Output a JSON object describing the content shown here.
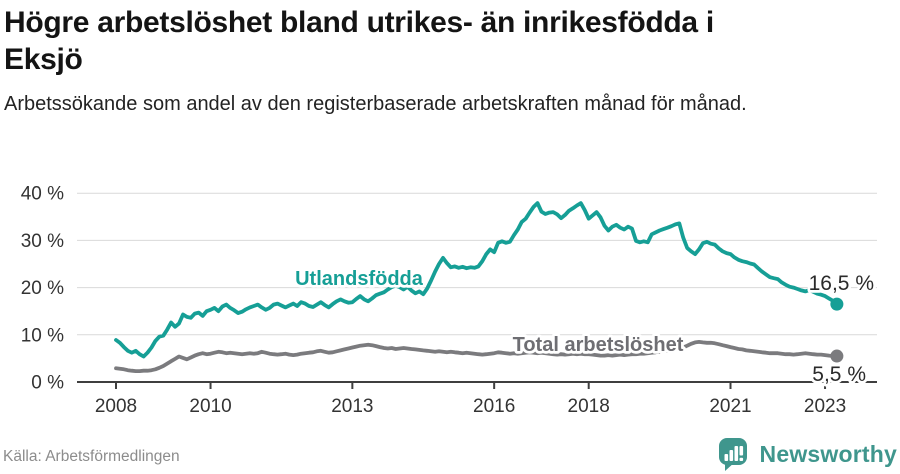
{
  "header": {
    "title_line1": "Högre arbetslöshet bland utrikes- än inrikesfödda i",
    "title_line2": "Eksjö",
    "subtitle": "Arbetssökande som andel av den registerbaserade arbetskraften månad för månad."
  },
  "footer": {
    "source": "Källa: Arbetsförmedlingen",
    "brand": "Newsworthy",
    "brand_icon": "bar-chart-speech-bubble-icon"
  },
  "colors": {
    "accent_teal": "#169f96",
    "series_gray": "#7b7b7e",
    "label_gray": "#6e6e73",
    "grid": "#d9d9d9",
    "axis": "#3f3f3f",
    "tick_text": "#333333",
    "annotation_text": "#2b2b2b",
    "brand_teal": "#3f968d"
  },
  "chart_data": {
    "type": "line",
    "title": "Högre arbetslöshet bland utrikes- än inrikesfödda i Eksjö",
    "subtitle": "Arbetssökande som andel av den registerbaserade arbetskraften månad för månad.",
    "grid": "horizontal",
    "legend_position": "inline-labels",
    "x_start": "2008-01",
    "x_end": "2023-04",
    "frequency": "monthly",
    "x_ticks": [
      2008,
      2010,
      2013,
      2016,
      2018,
      2021,
      2023
    ],
    "y_ticks": [
      0,
      10,
      20,
      30,
      40
    ],
    "y_tick_labels": [
      "0 %",
      "10 %",
      "20 %",
      "30 %",
      "40 %"
    ],
    "ylim": [
      0,
      42
    ],
    "series": [
      {
        "name": "Utlandsfödda",
        "color": "#169f96",
        "end_label": "16,5 %",
        "end_value": 16.5,
        "values": [
          8.9,
          8.3,
          7.4,
          6.6,
          6.2,
          6.6,
          5.9,
          5.4,
          6.2,
          7.3,
          8.7,
          9.6,
          9.8,
          11.1,
          12.6,
          11.7,
          12.4,
          14.3,
          13.8,
          13.6,
          14.5,
          14.7,
          14.0,
          15.0,
          15.3,
          15.7,
          15.0,
          16.0,
          16.4,
          15.7,
          15.2,
          14.6,
          14.9,
          15.4,
          15.8,
          16.1,
          16.4,
          15.8,
          15.3,
          15.7,
          16.4,
          16.6,
          16.2,
          15.8,
          16.2,
          16.6,
          16.1,
          16.9,
          16.6,
          16.1,
          15.9,
          16.4,
          16.9,
          16.3,
          15.8,
          16.5,
          17.1,
          17.5,
          17.1,
          16.8,
          16.9,
          17.6,
          18.2,
          17.5,
          17.1,
          17.7,
          18.4,
          18.7,
          19.0,
          19.6,
          20.1,
          20.4,
          20.1,
          19.6,
          20.2,
          19.4,
          18.8,
          19.2,
          18.6,
          19.8,
          21.5,
          23.4,
          25.0,
          26.3,
          25.2,
          24.3,
          24.5,
          24.2,
          24.4,
          24.1,
          24.3,
          24.2,
          24.5,
          25.6,
          27.1,
          28.1,
          27.5,
          29.5,
          29.8,
          29.5,
          29.7,
          31.1,
          32.3,
          33.9,
          34.6,
          35.9,
          37.1,
          37.9,
          36.1,
          35.6,
          35.9,
          36.0,
          35.5,
          34.7,
          35.4,
          36.3,
          36.8,
          37.4,
          37.9,
          36.4,
          34.6,
          35.3,
          36.0,
          34.9,
          33.1,
          32.1,
          32.9,
          33.3,
          32.7,
          32.3,
          32.9,
          32.5,
          29.9,
          29.6,
          29.8,
          29.6,
          31.3,
          31.7,
          32.1,
          32.4,
          32.7,
          33.0,
          33.4,
          33.6,
          30.6,
          28.4,
          27.7,
          27.1,
          28.1,
          29.4,
          29.7,
          29.3,
          29.1,
          28.3,
          27.7,
          27.3,
          27.1,
          26.4,
          25.9,
          25.6,
          25.4,
          25.1,
          24.9,
          24.1,
          23.4,
          22.8,
          22.2,
          22.0,
          21.8,
          21.1,
          20.6,
          20.2,
          20.0,
          19.7,
          19.4,
          19.2,
          19.5,
          19.1,
          18.7,
          18.5,
          18.2,
          17.7,
          17.2,
          16.5
        ]
      },
      {
        "name": "Total arbetslöshet",
        "color": "#7b7b7e",
        "end_label": "5,5 %",
        "end_value": 5.5,
        "values": [
          2.9,
          2.8,
          2.7,
          2.5,
          2.4,
          2.3,
          2.3,
          2.4,
          2.4,
          2.5,
          2.7,
          3.0,
          3.4,
          3.9,
          4.4,
          4.9,
          5.4,
          5.1,
          4.8,
          5.2,
          5.6,
          5.9,
          6.1,
          5.9,
          6.0,
          6.2,
          6.4,
          6.3,
          6.1,
          6.2,
          6.1,
          6.0,
          5.9,
          6.0,
          6.1,
          6.0,
          6.1,
          6.4,
          6.2,
          6.0,
          5.9,
          5.8,
          5.9,
          6.0,
          5.8,
          5.7,
          5.8,
          6.0,
          6.1,
          6.2,
          6.3,
          6.5,
          6.6,
          6.4,
          6.2,
          6.3,
          6.5,
          6.7,
          6.9,
          7.1,
          7.3,
          7.5,
          7.7,
          7.8,
          7.9,
          7.8,
          7.6,
          7.4,
          7.2,
          7.1,
          7.2,
          7.0,
          7.1,
          7.2,
          7.1,
          7.0,
          6.9,
          6.8,
          6.7,
          6.6,
          6.5,
          6.4,
          6.5,
          6.4,
          6.3,
          6.4,
          6.3,
          6.2,
          6.1,
          6.2,
          6.1,
          6.0,
          5.9,
          5.8,
          5.9,
          6.0,
          6.1,
          6.3,
          6.2,
          6.1,
          6.0,
          6.1,
          6.0,
          6.1,
          6.2,
          6.3,
          6.2,
          6.1,
          6.2,
          6.1,
          6.0,
          5.9,
          5.8,
          5.9,
          5.8,
          5.9,
          6.0,
          5.9,
          6.0,
          5.9,
          5.9,
          5.8,
          5.7,
          5.6,
          5.6,
          5.7,
          5.6,
          5.7,
          5.8,
          5.7,
          5.8,
          5.9,
          5.9,
          6.0,
          6.0,
          6.1,
          6.2,
          6.3,
          6.4,
          6.5,
          6.6,
          6.7,
          6.9,
          7.1,
          7.3,
          7.7,
          8.1,
          8.4,
          8.5,
          8.4,
          8.3,
          8.3,
          8.2,
          8.0,
          7.8,
          7.6,
          7.4,
          7.2,
          7.0,
          6.9,
          6.7,
          6.6,
          6.5,
          6.4,
          6.3,
          6.2,
          6.1,
          6.1,
          6.1,
          6.0,
          5.9,
          5.9,
          5.8,
          5.9,
          6.0,
          6.1,
          6.0,
          5.9,
          5.8,
          5.8,
          5.7,
          5.6,
          5.5,
          5.5
        ]
      }
    ]
  }
}
